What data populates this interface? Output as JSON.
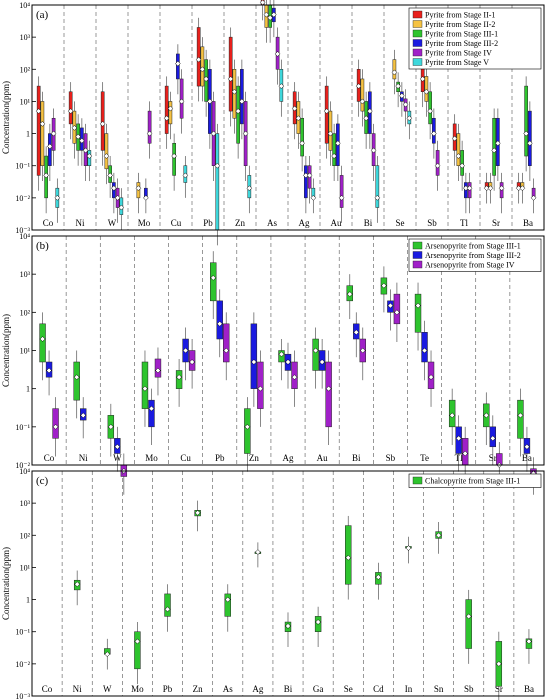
{
  "chart_data": [
    {
      "panel_label": "(a)",
      "type": "box",
      "ylabel": "Concentration(ppm)",
      "yscale": "log",
      "ylim": [
        0.001,
        10000
      ],
      "y_ticks": [
        "10⁻³",
        "10⁻²",
        "10⁻¹",
        "1",
        "10¹",
        "10²",
        "10³",
        "10⁴"
      ],
      "categories": [
        "Co",
        "Ni",
        "W",
        "Mo",
        "Cu",
        "Pb",
        "Zn",
        "As",
        "Ag",
        "Au",
        "Bi",
        "Se",
        "Sb",
        "Tl",
        "Sr",
        "Ba"
      ],
      "legend": {
        "position": "top-right"
      },
      "series": [
        {
          "name": "Pyrite from Stage II-1",
          "color": "#e8201c",
          "boxes": [
            [
              0.05,
              5,
              30
            ],
            [
              2,
              5,
              20
            ],
            [
              0.3,
              2,
              20
            ],
            null,
            [
              1,
              3,
              30
            ],
            [
              30,
              200,
              2000
            ],
            [
              5,
              50,
              1000
            ],
            [
              10000,
              12000,
              15000
            ],
            [
              2,
              6,
              20
            ],
            [
              0.5,
              5,
              30
            ],
            [
              10,
              30,
              100
            ],
            null,
            [
              20,
              50,
              200
            ],
            [
              0.3,
              0.7,
              2
            ],
            [
              0.02,
              0.02,
              0.03
            ],
            [
              0.02,
              0.02,
              0.03
            ]
          ]
        },
        {
          "name": "Pyrite from Stage II-2",
          "color": "#f5c242",
          "boxes": [
            [
              0.1,
              2,
              10
            ],
            [
              0.5,
              1.5,
              5
            ],
            [
              0.08,
              0.2,
              1
            ],
            [
              0.01,
              0.02,
              0.03
            ],
            [
              2,
              6,
              10
            ],
            [
              30,
              100,
              500
            ],
            [
              3,
              20,
              100
            ],
            [
              2000,
              5000,
              10000
            ],
            [
              1,
              3,
              10
            ],
            [
              0.3,
              1,
              5
            ],
            [
              5,
              10,
              50
            ],
            [
              50,
              80,
              200
            ],
            [
              10,
              20,
              60
            ],
            [
              0.1,
              0.2,
              1
            ],
            [
              0.02,
              0.02,
              0.03
            ],
            [
              0.02,
              0.02,
              0.03
            ]
          ]
        },
        {
          "name": "Pyrite from Stage III-1",
          "color": "#2ec42e",
          "boxes": [
            [
              0.01,
              0.05,
              0.2
            ],
            [
              0.3,
              0.8,
              2
            ],
            [
              0.03,
              0.05,
              0.1
            ],
            null,
            [
              0.05,
              0.2,
              0.5
            ],
            [
              10,
              50,
              200
            ],
            [
              0.5,
              5,
              30
            ],
            [
              2000,
              4000,
              10000
            ],
            [
              0.2,
              0.5,
              3
            ],
            [
              0.1,
              0.2,
              1
            ],
            [
              1,
              3,
              10
            ],
            [
              20,
              30,
              40
            ],
            [
              2,
              5,
              20
            ],
            [
              0.05,
              0.1,
              0.3
            ],
            [
              0.05,
              0.3,
              3
            ],
            [
              0.2,
              1,
              30
            ]
          ]
        },
        {
          "name": "Pyrite from Stage III-2",
          "color": "#1a1ae0",
          "boxes": [
            [
              0.1,
              0.4,
              1
            ],
            [
              0.3,
              0.6,
              1.5
            ],
            [
              0.01,
              0.02,
              0.03
            ],
            [
              0.01,
              0.01,
              0.02
            ],
            [
              50,
              150,
              300
            ],
            [
              1,
              10,
              100
            ],
            [
              2,
              10,
              100
            ],
            [
              3000,
              5000,
              8000
            ],
            [
              0.01,
              0.05,
              0.1
            ],
            [
              0.1,
              0.5,
              2
            ],
            [
              1,
              5,
              20
            ],
            [
              10,
              15,
              20
            ],
            [
              0.5,
              1,
              3
            ],
            [
              0.01,
              0.02,
              0.03
            ],
            [
              0.1,
              0.5,
              3
            ],
            [
              0.1,
              0.5,
              5
            ]
          ]
        },
        {
          "name": "Pyrite from Stage IV",
          "color": "#a020c8",
          "boxes": [
            [
              0.3,
              1,
              3
            ],
            [
              0.1,
              0.3,
              1
            ],
            [
              0.005,
              0.01,
              0.02
            ],
            [
              0.5,
              1,
              5
            ],
            [
              3,
              10,
              50
            ],
            [
              0.1,
              1,
              10
            ],
            [
              0.1,
              1,
              10
            ],
            [
              100,
              300,
              1000
            ],
            [
              0.02,
              0.05,
              0.1
            ],
            [
              0.005,
              0.01,
              0.05
            ],
            [
              0.1,
              0.3,
              1
            ],
            [
              5,
              8,
              12
            ],
            [
              0.05,
              0.1,
              0.3
            ],
            [
              0.01,
              0.02,
              0.03
            ],
            [
              0.01,
              0.02,
              0.03
            ],
            [
              0.01,
              0.01,
              0.02
            ]
          ]
        },
        {
          "name": "Pyrite from Stage V",
          "color": "#3ed8dc",
          "boxes": [
            [
              0.005,
              0.01,
              0.02
            ],
            [
              0.1,
              0.2,
              0.3
            ],
            [
              0.003,
              0.005,
              0.01
            ],
            null,
            [
              0.03,
              0.05,
              0.1
            ],
            [
              0.001,
              0.1,
              1
            ],
            [
              0.01,
              0.02,
              0.05
            ],
            [
              10,
              30,
              100
            ],
            [
              0.01,
              0.01,
              0.02
            ],
            null,
            [
              0.005,
              0.01,
              0.1
            ],
            [
              2,
              3,
              5
            ],
            null,
            null,
            null,
            null
          ]
        }
      ]
    },
    {
      "panel_label": "(b)",
      "type": "box",
      "ylabel": "Concentration(ppm)",
      "yscale": "log",
      "ylim": [
        0.01,
        10000
      ],
      "y_ticks": [
        "10⁻²",
        "10⁻¹",
        "1",
        "10¹",
        "10²",
        "10³",
        "10⁴"
      ],
      "categories": [
        "Co",
        "Ni",
        "W",
        "Mo",
        "Cu",
        "Pb",
        "Zn",
        "Ag",
        "Au",
        "Bi",
        "Sb",
        "Te",
        "Tl",
        "Sr",
        "Ba"
      ],
      "legend": {
        "position": "top-right"
      },
      "series": [
        {
          "name": "Arsenopyrite from Stage III-1",
          "color": "#2ec42e",
          "boxes": [
            [
              5,
              20,
              50
            ],
            [
              0.5,
              2,
              5
            ],
            [
              0.05,
              0.1,
              0.2
            ],
            [
              0.3,
              1,
              5
            ],
            [
              1,
              2,
              3
            ],
            [
              200,
              800,
              2000
            ],
            [
              0.02,
              0.1,
              0.3
            ],
            [
              5,
              8,
              10
            ],
            [
              3,
              10,
              20
            ],
            [
              200,
              300,
              500
            ],
            [
              300,
              500,
              800
            ],
            [
              30,
              150,
              300
            ],
            [
              0.1,
              0.2,
              0.5
            ],
            [
              0.1,
              0.2,
              0.4
            ],
            [
              0.05,
              0.2,
              0.5
            ]
          ]
        },
        {
          "name": "Arsenopyrite from Stage III-2",
          "color": "#1a1ae0",
          "boxes": [
            [
              2,
              3,
              5
            ],
            [
              0.15,
              0.2,
              0.3
            ],
            [
              0.02,
              0.03,
              0.05
            ],
            [
              0.1,
              0.3,
              0.5
            ],
            [
              5,
              10,
              20
            ],
            [
              20,
              50,
              200
            ],
            [
              1,
              5,
              50
            ],
            [
              3,
              5,
              8
            ],
            [
              3,
              5,
              10
            ],
            [
              20,
              30,
              50
            ],
            [
              100,
              150,
              200
            ],
            [
              5,
              10,
              30
            ],
            [
              0.02,
              0.05,
              0.1
            ],
            [
              0.03,
              0.05,
              0.1
            ],
            [
              0.02,
              0.03,
              0.05
            ]
          ]
        },
        {
          "name": "Arsenopyrite from Stage IV",
          "color": "#a020c8",
          "boxes": [
            [
              0.05,
              0.1,
              0.3
            ],
            null,
            [
              0.005,
              0.007,
              0.01
            ],
            [
              2,
              3,
              6
            ],
            [
              3,
              5,
              10
            ],
            [
              5,
              10,
              50
            ],
            [
              0.3,
              1,
              5
            ],
            [
              1,
              2,
              5
            ],
            [
              0.1,
              1,
              5
            ],
            [
              5,
              10,
              20
            ],
            [
              50,
              100,
              300
            ],
            [
              1,
              2,
              5
            ],
            [
              0.01,
              0.02,
              0.05
            ],
            [
              0.01,
              0.01,
              0.02
            ],
            [
              0.005,
              0.006,
              0.008
            ]
          ]
        }
      ]
    },
    {
      "panel_label": "(c)",
      "type": "box",
      "ylabel": "Concentration(ppm)",
      "yscale": "log",
      "ylim": [
        0.001,
        10000
      ],
      "y_ticks": [
        "10⁻³",
        "10⁻²",
        "10⁻¹",
        "1",
        "10¹",
        "10²",
        "10³",
        "10⁴"
      ],
      "categories": [
        "Co",
        "Ni",
        "W",
        "Mo",
        "Pb",
        "Zn",
        "As",
        "Ag",
        "Bi",
        "Ga",
        "Se",
        "Cd",
        "In",
        "Sn",
        "Sb",
        "Sr",
        "Ba"
      ],
      "legend": {
        "position": "top-right"
      },
      "series": [
        {
          "name": "Chalcopyrite from Stage III-1",
          "color": "#2ec42e",
          "boxes": [
            null,
            [
              2,
              3,
              4
            ],
            [
              0.02,
              0.02,
              0.03
            ],
            [
              0.007,
              0.05,
              0.1
            ],
            [
              0.3,
              0.5,
              1.5
            ],
            [
              400,
              500,
              600
            ],
            [
              0.3,
              1,
              1.5
            ],
            [
              30,
              30,
              30
            ],
            [
              0.1,
              0.15,
              0.2
            ],
            [
              0.1,
              0.2,
              0.3
            ],
            [
              3,
              20,
              200
            ],
            [
              3,
              5,
              7
            ],
            [
              40,
              40,
              45
            ],
            [
              80,
              100,
              130
            ],
            [
              0.03,
              0.3,
              1
            ],
            [
              0.002,
              0.01,
              0.05
            ],
            [
              0.03,
              0.05,
              0.06
            ]
          ]
        }
      ]
    }
  ]
}
